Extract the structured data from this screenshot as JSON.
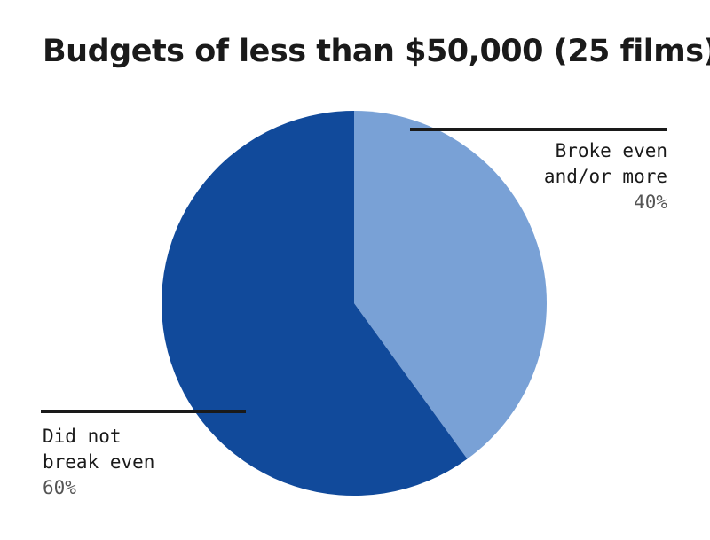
{
  "chart_data": {
    "type": "pie",
    "title": "Budgets of less than $50,000 (25 films)",
    "slices": [
      {
        "label_lines": [
          "Broke even",
          "and/or more"
        ],
        "value": 40,
        "value_label": "40%",
        "color": "#79a1d6"
      },
      {
        "label_lines": [
          "Did not",
          "break even"
        ],
        "value": 60,
        "value_label": "60%",
        "color": "#114a9b"
      }
    ],
    "start_angle_deg": 0,
    "direction": "clockwise"
  }
}
